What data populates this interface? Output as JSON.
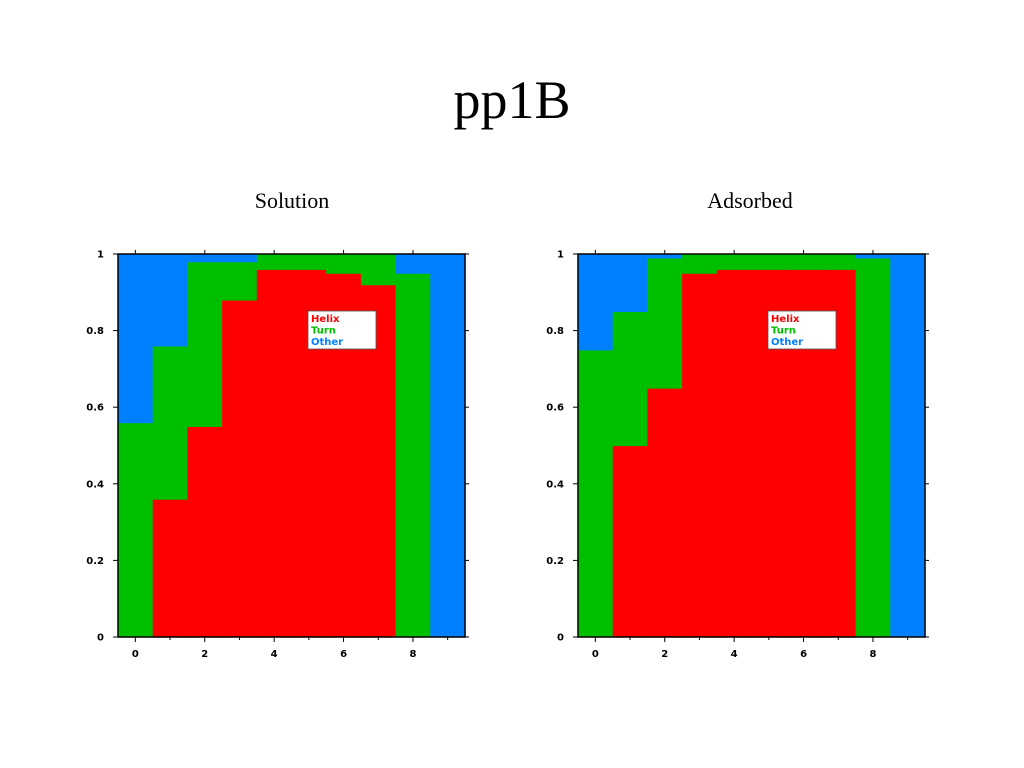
{
  "title": "pp1B",
  "colors": {
    "helix": "#ff0000",
    "turn": "#00bf00",
    "other": "#0080ff",
    "axis": "#000000"
  },
  "chart_data": [
    {
      "type": "area",
      "title": "Solution",
      "xlabel": "",
      "ylabel": "",
      "stacked": true,
      "step": true,
      "x": [
        0,
        1,
        2,
        3,
        4,
        5,
        6,
        7,
        8,
        9
      ],
      "xlim": [
        -0.5,
        9.5
      ],
      "ylim": [
        0,
        1
      ],
      "xticks": [
        "0",
        "2",
        "4",
        "6",
        "8"
      ],
      "yticks": [
        "0",
        "0.2",
        "0.4",
        "0.6",
        "0.8",
        "1"
      ],
      "grid": false,
      "legend_position": "upper-center",
      "series": [
        {
          "name": "Helix",
          "values": [
            0,
            0.36,
            0.55,
            0.88,
            0.96,
            0.96,
            0.95,
            0.92,
            0,
            0
          ]
        },
        {
          "name": "Turn",
          "values": [
            0.56,
            0.4,
            0.43,
            0.1,
            0.04,
            0.04,
            0.05,
            0.08,
            0.95,
            0
          ]
        },
        {
          "name": "Other",
          "values": [
            0.44,
            0.24,
            0.02,
            0.02,
            0,
            0,
            0,
            0,
            0.05,
            1
          ]
        }
      ]
    },
    {
      "type": "area",
      "title": "Adsorbed",
      "xlabel": "",
      "ylabel": "",
      "stacked": true,
      "step": true,
      "x": [
        0,
        1,
        2,
        3,
        4,
        5,
        6,
        7,
        8,
        9
      ],
      "xlim": [
        -0.5,
        9.5
      ],
      "ylim": [
        0,
        1
      ],
      "xticks": [
        "0",
        "2",
        "4",
        "6",
        "8"
      ],
      "yticks": [
        "0",
        "0.2",
        "0.4",
        "0.6",
        "0.8",
        "1"
      ],
      "grid": false,
      "legend_position": "upper-center",
      "series": [
        {
          "name": "Helix",
          "values": [
            0,
            0.5,
            0.65,
            0.95,
            0.96,
            0.96,
            0.96,
            0.96,
            0,
            0
          ]
        },
        {
          "name": "Turn",
          "values": [
            0.75,
            0.35,
            0.34,
            0.05,
            0.04,
            0.04,
            0.04,
            0.04,
            0.99,
            0
          ]
        },
        {
          "name": "Other",
          "values": [
            0.25,
            0.15,
            0.01,
            0,
            0,
            0,
            0,
            0,
            0.01,
            1
          ]
        }
      ]
    }
  ]
}
